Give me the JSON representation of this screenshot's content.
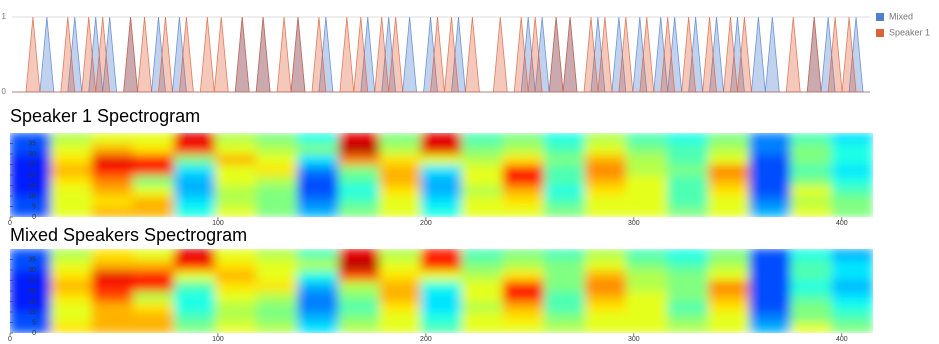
{
  "chart_data": [
    {
      "type": "line",
      "ylim": [
        0,
        1
      ],
      "yticks": [
        0,
        1
      ],
      "grid": true,
      "legend": "right",
      "series": [
        {
          "name": "Mixed",
          "color": "#4e7fd1",
          "values": [
            0,
            0,
            0,
            0,
            0,
            1,
            0,
            0,
            0,
            1,
            0,
            0,
            1,
            0,
            1,
            0,
            0,
            1,
            0,
            0,
            0,
            1,
            0,
            0,
            1,
            0,
            0,
            0,
            0,
            0,
            0,
            0,
            0,
            1,
            0,
            0,
            1,
            0,
            0,
            0,
            0,
            1,
            0,
            0,
            0,
            1,
            0,
            0,
            0,
            0,
            0,
            1,
            0,
            0,
            1,
            0,
            0,
            1,
            0,
            0,
            1,
            0,
            0,
            0,
            1,
            0,
            0,
            0,
            0,
            0,
            0,
            0,
            0,
            0,
            1,
            0,
            1,
            0,
            1,
            0,
            1,
            0,
            0,
            0,
            1,
            0,
            0,
            1,
            0,
            0,
            1,
            0,
            0,
            1,
            0,
            1,
            0,
            0,
            1,
            0,
            0,
            1,
            0,
            0,
            1,
            0,
            0,
            1,
            0,
            1,
            0,
            0,
            0,
            0,
            0,
            1,
            0,
            1,
            0,
            0,
            0,
            1,
            0,
            0
          ]
        },
        {
          "name": "Speaker 1",
          "color": "#e0603a",
          "values": [
            0,
            0,
            0,
            1,
            0,
            0,
            0,
            0,
            1,
            0,
            0,
            1,
            0,
            1,
            0,
            0,
            0,
            1,
            0,
            1,
            0,
            0,
            1,
            0,
            0,
            1,
            0,
            0,
            1,
            0,
            1,
            0,
            0,
            1,
            0,
            0,
            1,
            0,
            0,
            1,
            0,
            1,
            0,
            0,
            1,
            0,
            0,
            0,
            1,
            0,
            1,
            0,
            0,
            1,
            0,
            1,
            0,
            0,
            0,
            0,
            0,
            1,
            0,
            1,
            0,
            0,
            1,
            0,
            0,
            0,
            1,
            0,
            0,
            1,
            0,
            1,
            0,
            0,
            1,
            0,
            1,
            0,
            0,
            1,
            0,
            1,
            0,
            0,
            1,
            0,
            0,
            1,
            0,
            0,
            1,
            0,
            0,
            1,
            0,
            0,
            1,
            0,
            0,
            1,
            0,
            1,
            0,
            0,
            0,
            0,
            0,
            0,
            1,
            0,
            0,
            1,
            0,
            0,
            1,
            0,
            1,
            0,
            0,
            0
          ]
        }
      ]
    },
    {
      "type": "heatmap",
      "title": "Speaker 1 Spectrogram",
      "xlim": [
        0,
        415
      ],
      "xticks": [
        0,
        100,
        200,
        300,
        400
      ],
      "ylim": [
        0,
        40
      ],
      "yticks": [
        0,
        5,
        10,
        15,
        20,
        25,
        30,
        35
      ],
      "zlim": [
        0,
        1
      ],
      "z": [
        [
          0.2,
          0.6,
          0.7,
          0.7,
          0.4,
          0.6,
          0.5,
          0.3,
          0.5,
          0.6,
          0.4,
          0.6,
          0.6,
          0.5,
          0.6,
          0.6,
          0.5,
          0.6,
          0.3,
          0.6,
          0.5
        ],
        [
          0.2,
          0.6,
          0.65,
          0.7,
          0.35,
          0.55,
          0.5,
          0.25,
          0.45,
          0.6,
          0.35,
          0.6,
          0.65,
          0.45,
          0.6,
          0.6,
          0.45,
          0.6,
          0.25,
          0.55,
          0.5
        ],
        [
          0.15,
          0.6,
          0.7,
          0.6,
          0.3,
          0.55,
          0.5,
          0.2,
          0.4,
          0.65,
          0.3,
          0.55,
          0.7,
          0.4,
          0.65,
          0.6,
          0.45,
          0.65,
          0.2,
          0.6,
          0.45
        ],
        [
          0.15,
          0.65,
          0.75,
          0.5,
          0.3,
          0.6,
          0.55,
          0.2,
          0.45,
          0.7,
          0.3,
          0.6,
          0.85,
          0.45,
          0.7,
          0.6,
          0.45,
          0.7,
          0.2,
          0.5,
          0.4
        ],
        [
          0.15,
          0.7,
          0.85,
          0.85,
          0.35,
          0.6,
          0.65,
          0.25,
          0.5,
          0.7,
          0.35,
          0.6,
          0.85,
          0.45,
          0.75,
          0.55,
          0.5,
          0.75,
          0.2,
          0.45,
          0.35
        ],
        [
          0.15,
          0.65,
          0.9,
          0.85,
          0.5,
          0.7,
          0.6,
          0.35,
          0.75,
          0.65,
          0.6,
          0.55,
          0.65,
          0.5,
          0.7,
          0.55,
          0.45,
          0.6,
          0.2,
          0.5,
          0.4
        ],
        [
          0.2,
          0.6,
          0.7,
          0.65,
          0.85,
          0.6,
          0.55,
          0.5,
          0.95,
          0.55,
          0.9,
          0.5,
          0.55,
          0.45,
          0.6,
          0.5,
          0.45,
          0.55,
          0.25,
          0.5,
          0.4
        ],
        [
          0.2,
          0.55,
          0.6,
          0.6,
          0.9,
          0.55,
          0.5,
          0.4,
          0.9,
          0.5,
          0.9,
          0.45,
          0.5,
          0.4,
          0.55,
          0.45,
          0.4,
          0.5,
          0.25,
          0.45,
          0.35
        ]
      ]
    },
    {
      "type": "heatmap",
      "title": "Mixed Speakers Spectrogram",
      "xlim": [
        0,
        415
      ],
      "xticks": [
        0,
        100,
        200,
        300,
        400
      ],
      "ylim": [
        0,
        40
      ],
      "yticks": [
        0,
        5,
        10,
        15,
        20,
        25,
        30,
        35
      ],
      "zlim": [
        0,
        1
      ],
      "z": [
        [
          0.2,
          0.65,
          0.7,
          0.7,
          0.5,
          0.6,
          0.55,
          0.35,
          0.55,
          0.6,
          0.45,
          0.6,
          0.6,
          0.55,
          0.6,
          0.6,
          0.55,
          0.6,
          0.3,
          0.6,
          0.5
        ],
        [
          0.2,
          0.6,
          0.7,
          0.7,
          0.45,
          0.55,
          0.5,
          0.3,
          0.5,
          0.6,
          0.4,
          0.6,
          0.65,
          0.5,
          0.6,
          0.6,
          0.5,
          0.6,
          0.25,
          0.5,
          0.45
        ],
        [
          0.15,
          0.6,
          0.7,
          0.65,
          0.4,
          0.55,
          0.5,
          0.25,
          0.45,
          0.65,
          0.35,
          0.55,
          0.7,
          0.45,
          0.65,
          0.6,
          0.45,
          0.65,
          0.2,
          0.5,
          0.4
        ],
        [
          0.15,
          0.65,
          0.8,
          0.55,
          0.4,
          0.6,
          0.55,
          0.25,
          0.5,
          0.7,
          0.35,
          0.6,
          0.85,
          0.45,
          0.7,
          0.6,
          0.5,
          0.7,
          0.2,
          0.45,
          0.35
        ],
        [
          0.15,
          0.7,
          0.85,
          0.85,
          0.45,
          0.65,
          0.65,
          0.3,
          0.55,
          0.7,
          0.4,
          0.6,
          0.85,
          0.5,
          0.75,
          0.55,
          0.5,
          0.75,
          0.2,
          0.4,
          0.3
        ],
        [
          0.15,
          0.65,
          0.9,
          0.85,
          0.6,
          0.7,
          0.6,
          0.4,
          0.8,
          0.65,
          0.6,
          0.55,
          0.65,
          0.5,
          0.7,
          0.55,
          0.5,
          0.6,
          0.2,
          0.45,
          0.35
        ],
        [
          0.2,
          0.6,
          0.7,
          0.7,
          0.85,
          0.65,
          0.6,
          0.55,
          0.95,
          0.6,
          0.85,
          0.5,
          0.55,
          0.5,
          0.6,
          0.5,
          0.45,
          0.55,
          0.2,
          0.45,
          0.35
        ],
        [
          0.2,
          0.55,
          0.65,
          0.6,
          0.9,
          0.6,
          0.55,
          0.45,
          0.9,
          0.55,
          0.85,
          0.45,
          0.5,
          0.45,
          0.55,
          0.45,
          0.4,
          0.5,
          0.2,
          0.4,
          0.3
        ]
      ]
    }
  ]
}
